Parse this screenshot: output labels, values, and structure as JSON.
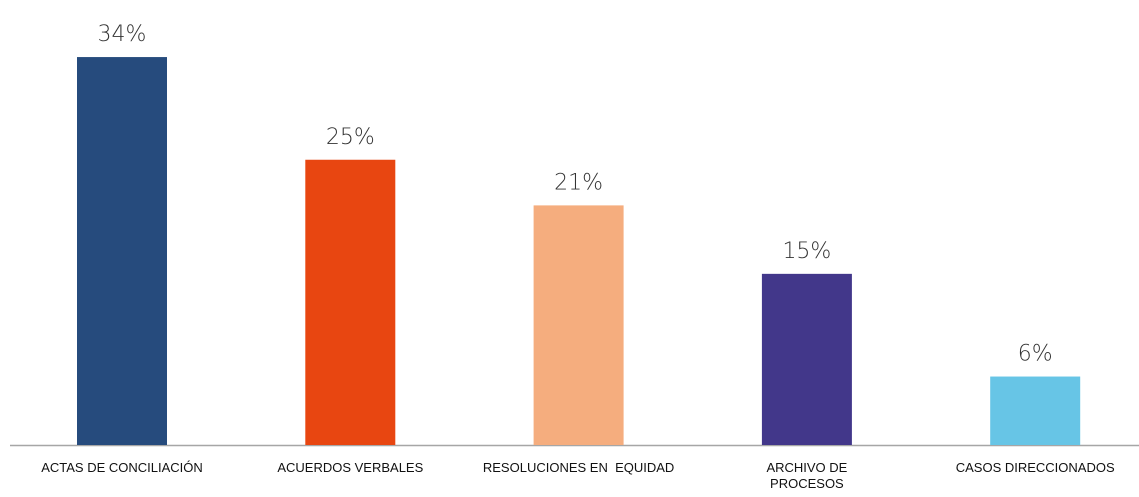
{
  "chart_data": {
    "type": "bar",
    "categories": [
      "ACTAS DE CONCILIACIÓN",
      "ACUERDOS VERBALES",
      "RESOLUCIONES EN  EQUIDAD",
      "ARCHIVO DE PROCESOS",
      "CASOS DIRECCIONADOS"
    ],
    "values": [
      34,
      25,
      21,
      15,
      6
    ],
    "value_labels": [
      "34%",
      "25%",
      "21%",
      "15%",
      "6%"
    ],
    "colors": [
      "#264b7d",
      "#e84611",
      "#f5ad7e",
      "#42378a",
      "#67c5e6"
    ]
  }
}
